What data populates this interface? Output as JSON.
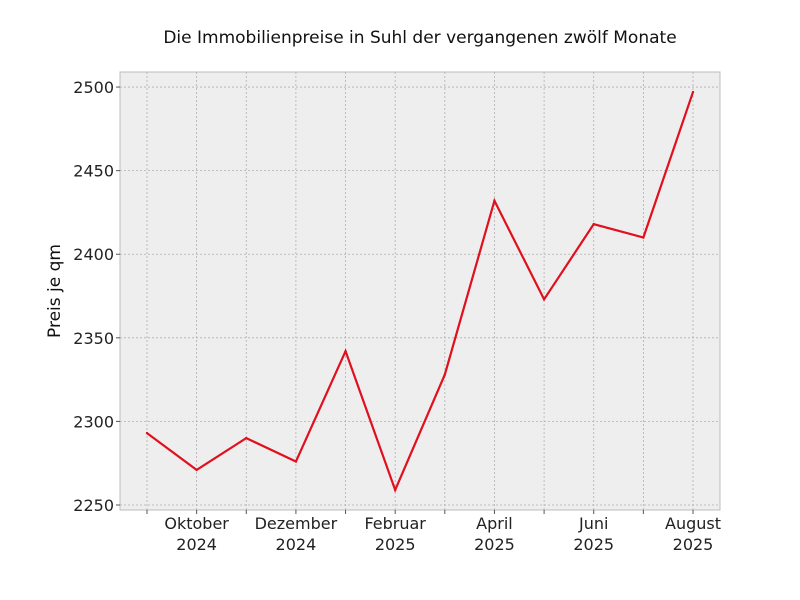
{
  "chart_data": {
    "type": "line",
    "title": "Die Immobilienpreise in Suhl der vergangenen zwölf Monate",
    "xlabel": "",
    "ylabel": "Preis je qm",
    "x": [
      "2024-09",
      "2024-10",
      "2024-11",
      "2024-12",
      "2025-01",
      "2025-02",
      "2025-03",
      "2025-04",
      "2025-05",
      "2025-06",
      "2025-07",
      "2025-08"
    ],
    "x_tick_labels": [
      {
        "index": 1,
        "line1": "Oktober",
        "line2": "2024"
      },
      {
        "index": 3,
        "line1": "Dezember",
        "line2": "2024"
      },
      {
        "index": 5,
        "line1": "Februar",
        "line2": "2025"
      },
      {
        "index": 7,
        "line1": "April",
        "line2": "2025"
      },
      {
        "index": 9,
        "line1": "Juni",
        "line2": "2025"
      },
      {
        "index": 11,
        "line1": "August",
        "line2": "2025"
      }
    ],
    "series": [
      {
        "values": [
          2293,
          2271,
          2290,
          2276,
          2342,
          2259,
          2328,
          2432,
          2373,
          2418,
          2410,
          2497
        ],
        "color": "#e0101e"
      }
    ],
    "ylim": [
      2247,
      2509
    ],
    "y_ticks": [
      2250,
      2300,
      2350,
      2400,
      2450,
      2500
    ],
    "grid": true,
    "legend": "none",
    "colors": {
      "plot_background": "#eeeeee",
      "grid": "#b0b0b0",
      "line": "#e0101e"
    }
  }
}
